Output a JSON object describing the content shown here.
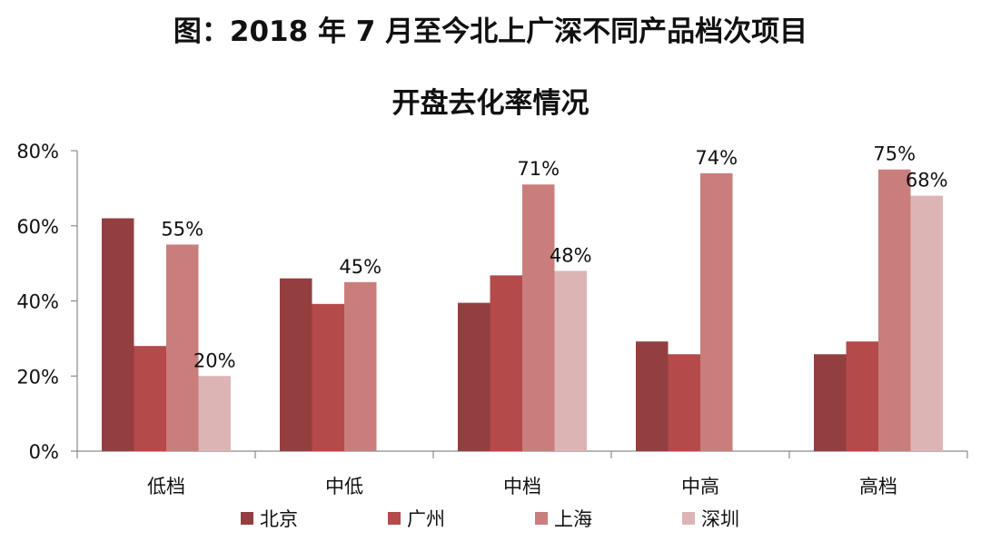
{
  "chart_data": {
    "type": "bar",
    "title_line1": "图：2018 年 7 月至今北上广深不同产品档次项目",
    "title_line2": "开盘去化率情况",
    "categories": [
      "低档",
      "中低",
      "中档",
      "中高",
      "高档"
    ],
    "series": [
      {
        "name": "北京",
        "color": "#943F3F",
        "values": [
          62,
          46,
          39.5,
          29.2,
          25.8
        ]
      },
      {
        "name": "广州",
        "color": "#B44A4A",
        "values": [
          28,
          39.2,
          46.8,
          25.8,
          29.2
        ]
      },
      {
        "name": "上海",
        "color": "#C97E7C",
        "values": [
          55,
          45,
          71,
          74,
          75
        ]
      },
      {
        "name": "深圳",
        "color": "#DDB4B4",
        "values": [
          20,
          null,
          48,
          null,
          68
        ]
      }
    ],
    "data_labels": [
      {
        "series": "上海",
        "category": "低档",
        "text": "55%"
      },
      {
        "series": "深圳",
        "category": "低档",
        "text": "20%"
      },
      {
        "series": "上海",
        "category": "中低",
        "text": "45%"
      },
      {
        "series": "上海",
        "category": "中档",
        "text": "71%"
      },
      {
        "series": "深圳",
        "category": "中档",
        "text": "48%"
      },
      {
        "series": "上海",
        "category": "中高",
        "text": "74%"
      },
      {
        "series": "上海",
        "category": "高档",
        "text": "75%"
      },
      {
        "series": "深圳",
        "category": "高档",
        "text": "68%"
      }
    ],
    "y_ticks": [
      0,
      20,
      40,
      60,
      80
    ],
    "y_tick_labels": [
      "0%",
      "20%",
      "40%",
      "60%",
      "80%"
    ],
    "ylim": [
      0,
      80
    ],
    "xlabel": "",
    "ylabel": "",
    "grid": false,
    "legend_position": "bottom"
  }
}
